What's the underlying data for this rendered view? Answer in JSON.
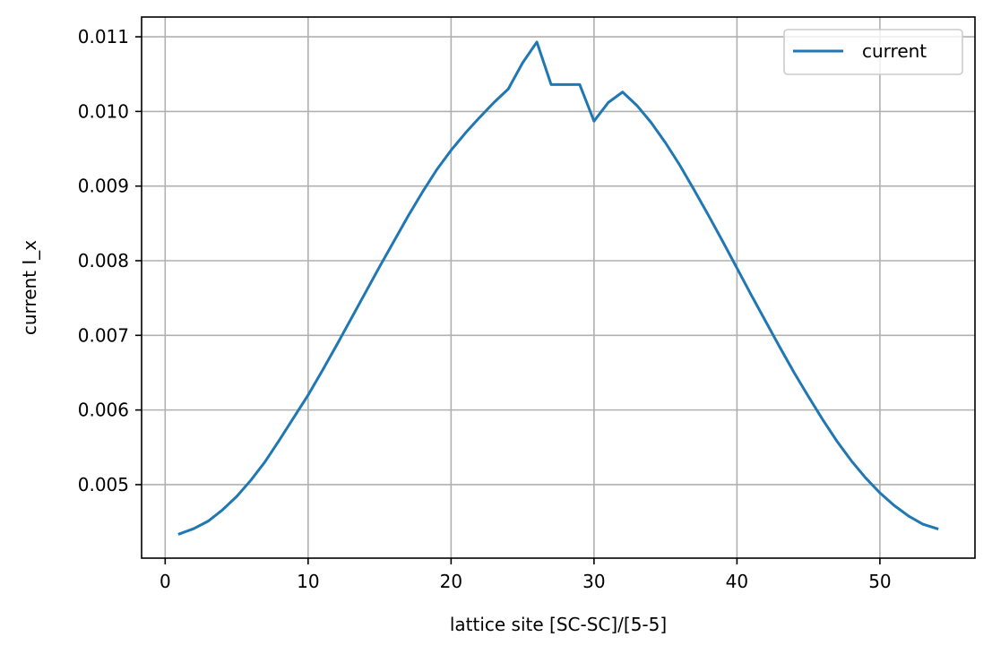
{
  "chart_data": {
    "type": "line",
    "xlabel": "lattice site [SC-SC]/[5-5]",
    "ylabel": "current I_x",
    "xlim": [
      -1.65,
      56.65
    ],
    "ylim": [
      0.004015,
      0.011265
    ],
    "xticks": [
      0,
      10,
      20,
      30,
      40,
      50
    ],
    "yticks": [
      0.005,
      0.006,
      0.007,
      0.008,
      0.009,
      0.01,
      0.011
    ],
    "xtick_labels": [
      "0",
      "10",
      "20",
      "30",
      "40",
      "50"
    ],
    "ytick_labels": [
      "0.005",
      "0.006",
      "0.007",
      "0.008",
      "0.009",
      "0.010",
      "0.011"
    ],
    "grid": true,
    "legend_position": "top-right",
    "series": [
      {
        "name": "current",
        "color": "#1f77b4",
        "x": [
          1,
          2,
          3,
          4,
          5,
          6,
          7,
          8,
          9,
          10,
          11,
          12,
          13,
          14,
          15,
          16,
          17,
          18,
          19,
          20,
          21,
          22,
          23,
          24,
          25,
          26,
          27,
          28,
          29,
          30,
          31,
          32,
          33,
          34,
          35,
          36,
          37,
          38,
          39,
          40,
          41,
          42,
          43,
          44,
          45,
          46,
          47,
          48,
          49,
          50,
          51,
          52,
          53,
          54
        ],
        "y": [
          0.00434,
          0.00441,
          0.00451,
          0.00466,
          0.00484,
          0.00506,
          0.00531,
          0.0056,
          0.0059,
          0.0062,
          0.00653,
          0.00687,
          0.00722,
          0.00757,
          0.00792,
          0.00826,
          0.0086,
          0.00892,
          0.00922,
          0.00948,
          0.00971,
          0.00992,
          0.01012,
          0.0103,
          0.01065,
          0.01093,
          0.01036,
          0.01036,
          0.01036,
          0.00987,
          0.01012,
          0.01026,
          0.01008,
          0.00985,
          0.00958,
          0.00928,
          0.00895,
          0.00861,
          0.00826,
          0.0079,
          0.00754,
          0.00719,
          0.00684,
          0.0065,
          0.00618,
          0.00587,
          0.00558,
          0.00532,
          0.00509,
          0.00489,
          0.00472,
          0.00458,
          0.00447,
          0.00441
        ]
      }
    ]
  }
}
